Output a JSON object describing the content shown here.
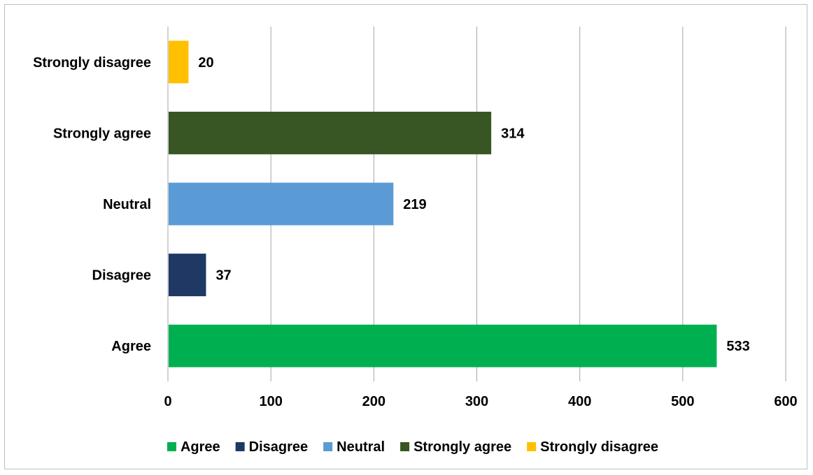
{
  "chart_data": {
    "type": "bar",
    "orientation": "horizontal",
    "categories": [
      "Agree",
      "Disagree",
      "Neutral",
      "Strongly agree",
      "Strongly disagree"
    ],
    "values": [
      533,
      37,
      219,
      314,
      20
    ],
    "colors": [
      "#00b050",
      "#1f3864",
      "#5b9bd5",
      "#375623",
      "#ffc000"
    ],
    "xlim": [
      0,
      600
    ],
    "xticks": [
      0,
      100,
      200,
      300,
      400,
      500,
      600
    ],
    "grid": "vertical",
    "legend": "bottom",
    "data_labels": true,
    "title": "",
    "xlabel": "",
    "ylabel": ""
  }
}
